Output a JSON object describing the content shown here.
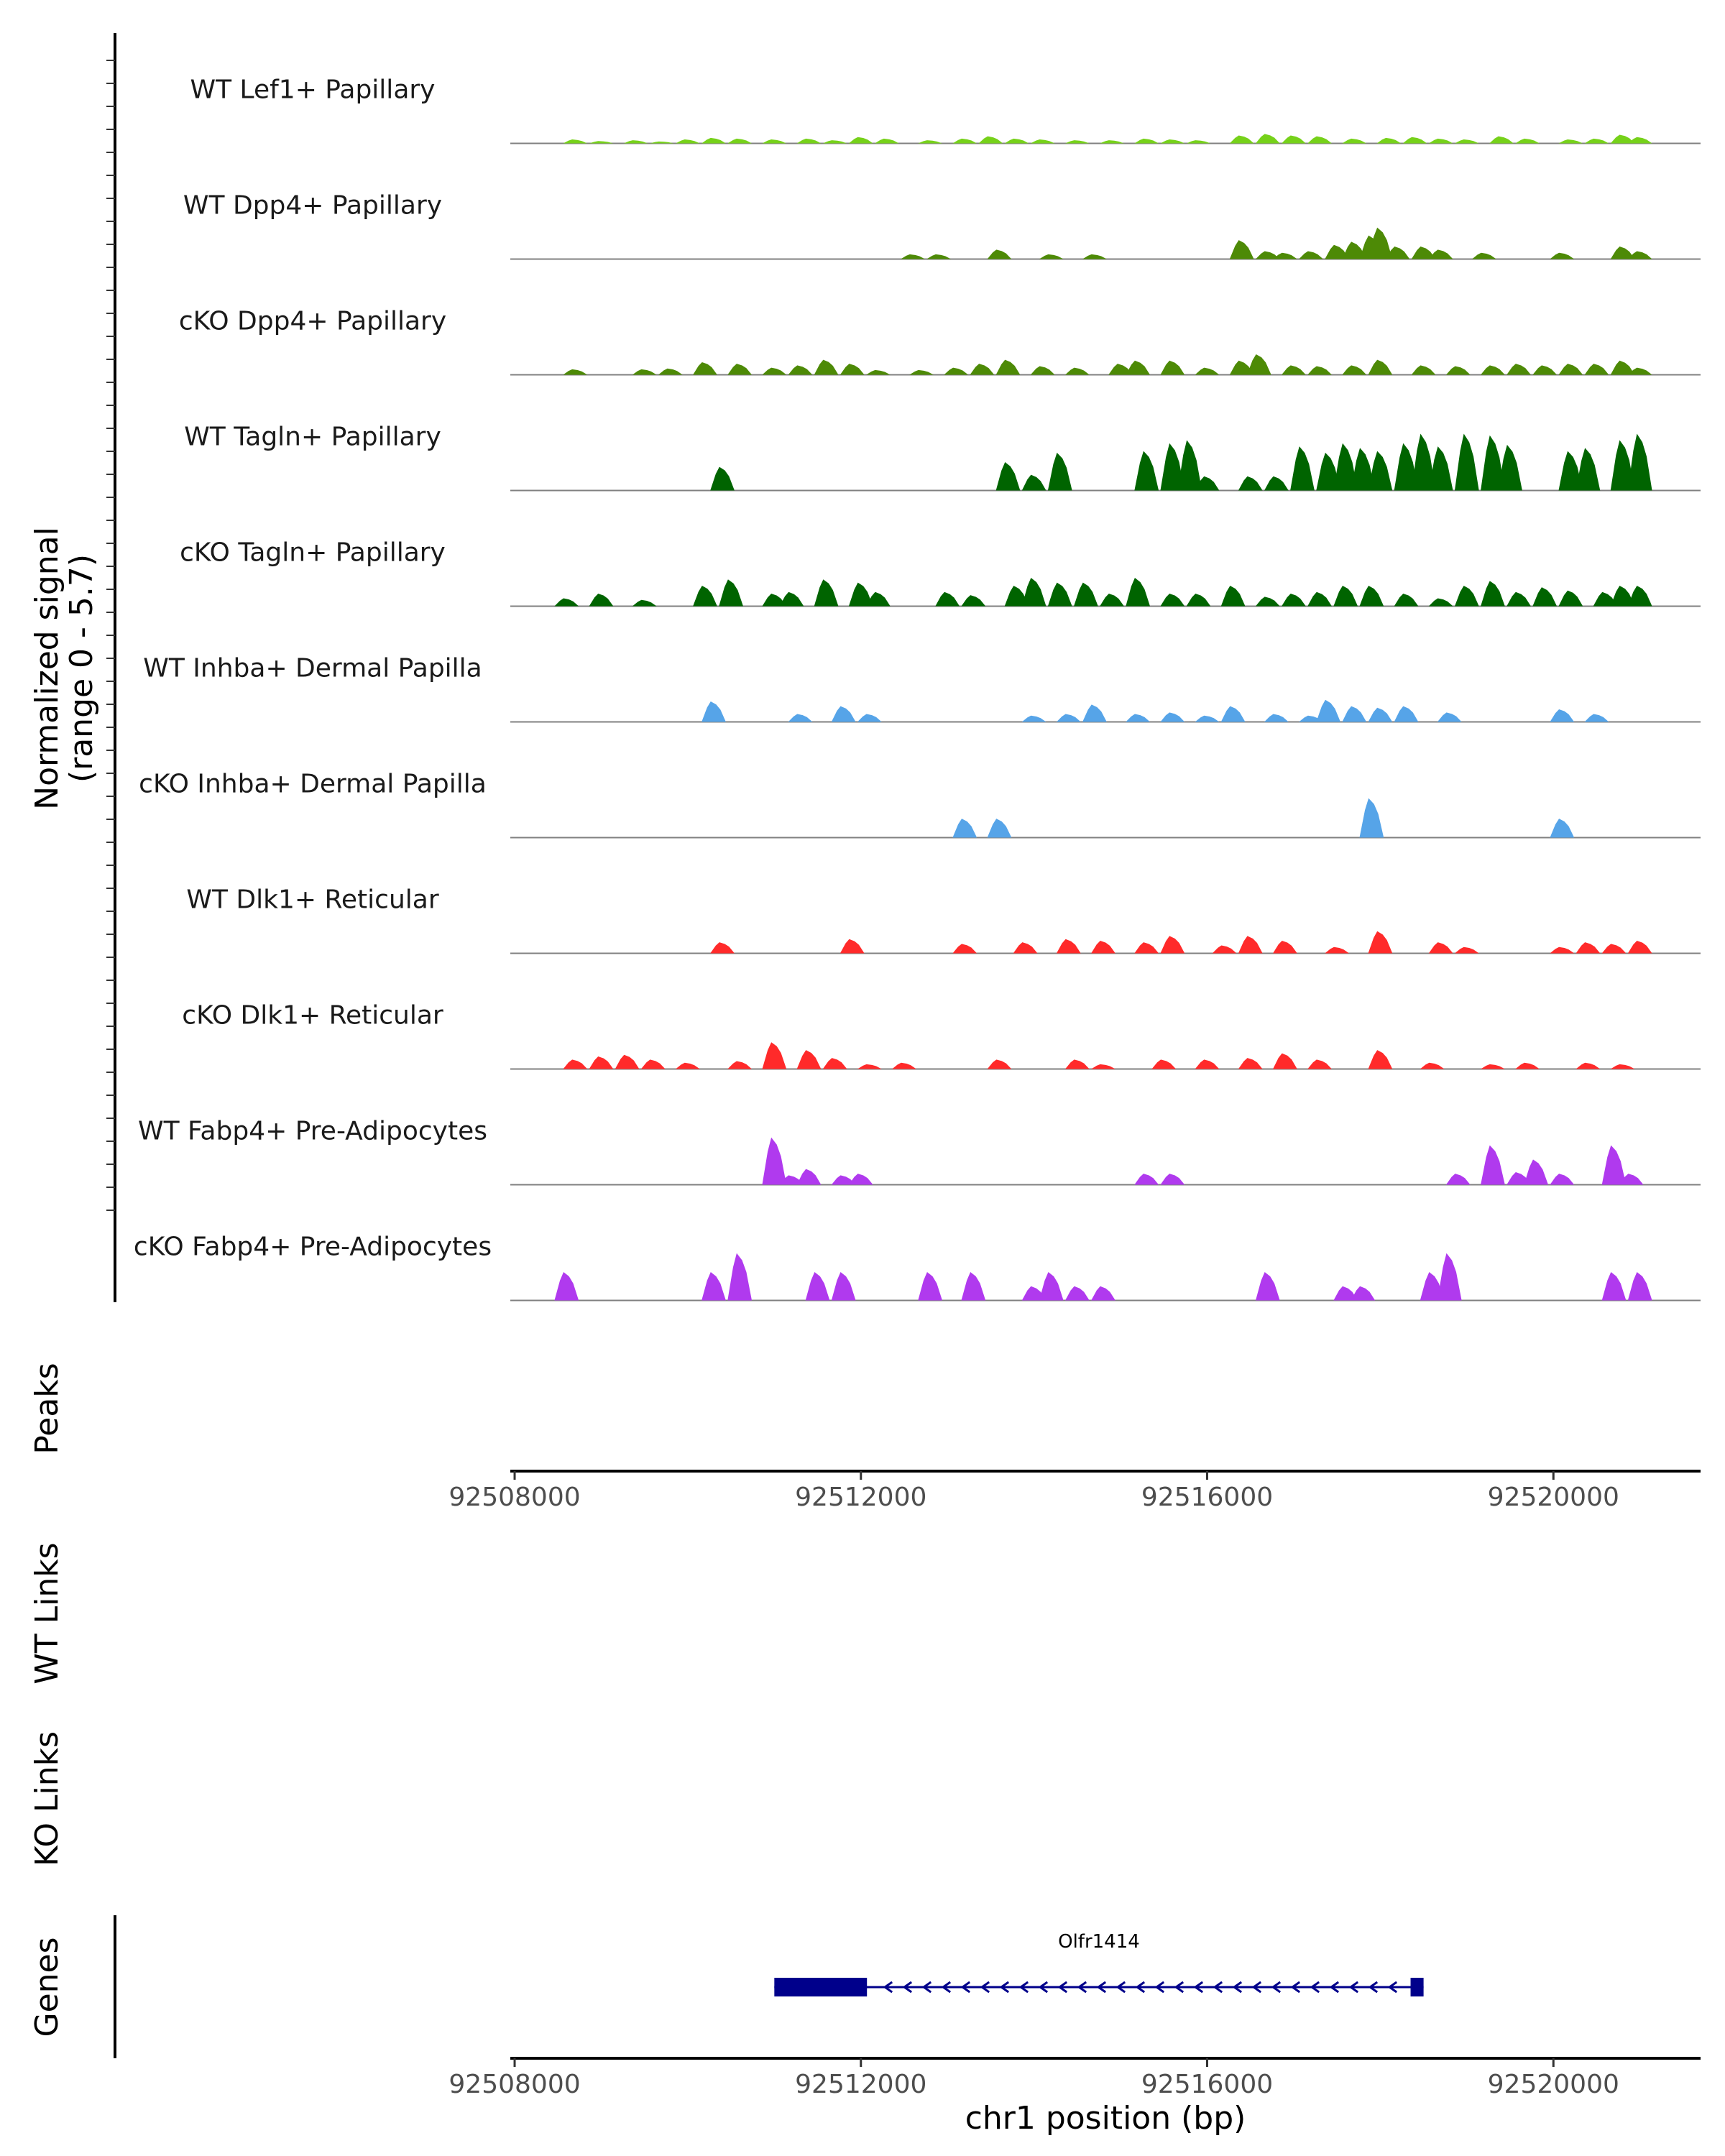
{
  "chart_data": {
    "type": "area",
    "title": "",
    "region": {
      "chrom": "chr1",
      "start": 92507950,
      "end": 92521700
    },
    "coverage_ylabel": "Normalized signal",
    "coverage_ylabel_range": "(range 0 - 5.7)",
    "ylim": [
      0,
      5.7
    ],
    "bin_bp": 100,
    "tracks": [
      {
        "name": "WT Lef1+ Papillary",
        "color": "#76D11A",
        "peaks": [
          [
            92508700,
            0.25
          ],
          [
            92509000,
            0.15
          ],
          [
            92509400,
            0.2
          ],
          [
            92509700,
            0.12
          ],
          [
            92510000,
            0.25
          ],
          [
            92510300,
            0.35
          ],
          [
            92510600,
            0.3
          ],
          [
            92511000,
            0.25
          ],
          [
            92511400,
            0.3
          ],
          [
            92511700,
            0.2
          ],
          [
            92512000,
            0.4
          ],
          [
            92512300,
            0.3
          ],
          [
            92512800,
            0.2
          ],
          [
            92513200,
            0.3
          ],
          [
            92513500,
            0.45
          ],
          [
            92513800,
            0.3
          ],
          [
            92514100,
            0.25
          ],
          [
            92514500,
            0.2
          ],
          [
            92514900,
            0.2
          ],
          [
            92515300,
            0.3
          ],
          [
            92515600,
            0.25
          ],
          [
            92515900,
            0.2
          ],
          [
            92516400,
            0.5
          ],
          [
            92516700,
            0.6
          ],
          [
            92517000,
            0.5
          ],
          [
            92517300,
            0.45
          ],
          [
            92517700,
            0.3
          ],
          [
            92518100,
            0.35
          ],
          [
            92518400,
            0.4
          ],
          [
            92518700,
            0.3
          ],
          [
            92519000,
            0.25
          ],
          [
            92519400,
            0.45
          ],
          [
            92519700,
            0.3
          ],
          [
            92520200,
            0.25
          ],
          [
            92520500,
            0.3
          ],
          [
            92520800,
            0.55
          ],
          [
            92521000,
            0.4
          ]
        ]
      },
      {
        "name": "WT Dpp4+ Papillary",
        "color": "#4D8A06",
        "peaks": [
          [
            92512600,
            0.3
          ],
          [
            92512900,
            0.3
          ],
          [
            92513600,
            0.6
          ],
          [
            92514200,
            0.3
          ],
          [
            92514700,
            0.3
          ],
          [
            92516400,
            1.2
          ],
          [
            92516700,
            0.5
          ],
          [
            92516900,
            0.4
          ],
          [
            92517200,
            0.5
          ],
          [
            92517500,
            0.9
          ],
          [
            92517700,
            1.1
          ],
          [
            92517900,
            1.5
          ],
          [
            92518000,
            2.0
          ],
          [
            92518200,
            0.8
          ],
          [
            92518500,
            0.8
          ],
          [
            92518700,
            0.6
          ],
          [
            92519200,
            0.4
          ],
          [
            92520100,
            0.4
          ],
          [
            92520800,
            0.8
          ],
          [
            92521000,
            0.5
          ]
        ]
      },
      {
        "name": "cKO Dpp4+ Papillary",
        "color": "#4D8A06",
        "peaks": [
          [
            92508700,
            0.35
          ],
          [
            92509500,
            0.35
          ],
          [
            92509800,
            0.4
          ],
          [
            92510200,
            0.8
          ],
          [
            92510600,
            0.7
          ],
          [
            92511000,
            0.45
          ],
          [
            92511300,
            0.6
          ],
          [
            92511600,
            0.95
          ],
          [
            92511900,
            0.7
          ],
          [
            92512200,
            0.3
          ],
          [
            92512700,
            0.3
          ],
          [
            92513100,
            0.45
          ],
          [
            92513400,
            0.7
          ],
          [
            92513700,
            0.95
          ],
          [
            92514100,
            0.55
          ],
          [
            92514500,
            0.45
          ],
          [
            92515000,
            0.7
          ],
          [
            92515200,
            0.9
          ],
          [
            92515600,
            0.9
          ],
          [
            92516000,
            0.45
          ],
          [
            92516400,
            0.9
          ],
          [
            92516600,
            1.3
          ],
          [
            92517000,
            0.6
          ],
          [
            92517300,
            0.55
          ],
          [
            92517700,
            0.6
          ],
          [
            92518000,
            0.95
          ],
          [
            92518500,
            0.6
          ],
          [
            92518900,
            0.55
          ],
          [
            92519300,
            0.6
          ],
          [
            92519600,
            0.7
          ],
          [
            92519900,
            0.6
          ],
          [
            92520200,
            0.7
          ],
          [
            92520500,
            0.7
          ],
          [
            92520800,
            0.9
          ],
          [
            92521000,
            0.45
          ]
        ]
      },
      {
        "name": "WT Tagln+ Papillary",
        "color": "#006400",
        "peaks": [
          [
            92510400,
            1.5
          ],
          [
            92513700,
            1.8
          ],
          [
            92514000,
            1.0
          ],
          [
            92514300,
            2.4
          ],
          [
            92515300,
            2.5
          ],
          [
            92515600,
            3.0
          ],
          [
            92515800,
            3.2
          ],
          [
            92516000,
            0.9
          ],
          [
            92516500,
            0.9
          ],
          [
            92516800,
            0.9
          ],
          [
            92517100,
            2.8
          ],
          [
            92517400,
            2.4
          ],
          [
            92517600,
            3.0
          ],
          [
            92517800,
            2.7
          ],
          [
            92518000,
            2.5
          ],
          [
            92518300,
            3.0
          ],
          [
            92518500,
            3.6
          ],
          [
            92518700,
            2.8
          ],
          [
            92519000,
            3.6
          ],
          [
            92519300,
            3.5
          ],
          [
            92519500,
            2.9
          ],
          [
            92520200,
            2.5
          ],
          [
            92520400,
            2.7
          ],
          [
            92520800,
            3.2
          ],
          [
            92521000,
            3.6
          ]
        ]
      },
      {
        "name": "cKO Tagln+ Papillary",
        "color": "#006400",
        "peaks": [
          [
            92508600,
            0.5
          ],
          [
            92509000,
            0.8
          ],
          [
            92509500,
            0.4
          ],
          [
            92510200,
            1.3
          ],
          [
            92510500,
            1.7
          ],
          [
            92511000,
            0.8
          ],
          [
            92511200,
            0.9
          ],
          [
            92511600,
            1.7
          ],
          [
            92512000,
            1.5
          ],
          [
            92512200,
            0.9
          ],
          [
            92513000,
            0.9
          ],
          [
            92513300,
            0.7
          ],
          [
            92513800,
            1.3
          ],
          [
            92514000,
            1.8
          ],
          [
            92514300,
            1.5
          ],
          [
            92514600,
            1.5
          ],
          [
            92514900,
            0.8
          ],
          [
            92515200,
            1.8
          ],
          [
            92515600,
            0.8
          ],
          [
            92515900,
            0.8
          ],
          [
            92516300,
            1.3
          ],
          [
            92516700,
            0.6
          ],
          [
            92517000,
            0.8
          ],
          [
            92517300,
            0.9
          ],
          [
            92517600,
            1.3
          ],
          [
            92517900,
            1.3
          ],
          [
            92518300,
            0.8
          ],
          [
            92518700,
            0.5
          ],
          [
            92519000,
            1.3
          ],
          [
            92519300,
            1.6
          ],
          [
            92519600,
            0.9
          ],
          [
            92519900,
            1.2
          ],
          [
            92520200,
            1.0
          ],
          [
            92520600,
            0.9
          ],
          [
            92520800,
            1.3
          ],
          [
            92521000,
            1.3
          ]
        ]
      },
      {
        "name": "WT Inhba+ Dermal Papilla",
        "color": "#56A4E8",
        "peaks": [
          [
            92510300,
            1.3
          ],
          [
            92511300,
            0.5
          ],
          [
            92511800,
            1.0
          ],
          [
            92512100,
            0.5
          ],
          [
            92514000,
            0.4
          ],
          [
            92514400,
            0.5
          ],
          [
            92514700,
            1.1
          ],
          [
            92515200,
            0.5
          ],
          [
            92515600,
            0.6
          ],
          [
            92516000,
            0.4
          ],
          [
            92516300,
            1.0
          ],
          [
            92516800,
            0.5
          ],
          [
            92517200,
            0.4
          ],
          [
            92517400,
            1.4
          ],
          [
            92517700,
            1.0
          ],
          [
            92518000,
            0.9
          ],
          [
            92518300,
            1.0
          ],
          [
            92518800,
            0.6
          ],
          [
            92520100,
            0.8
          ],
          [
            92520500,
            0.5
          ]
        ]
      },
      {
        "name": "cKO Inhba+ Dermal Papilla",
        "color": "#56A4E8",
        "peaks": [
          [
            92513200,
            1.2
          ],
          [
            92513600,
            1.2
          ],
          [
            92517900,
            2.5
          ],
          [
            92520100,
            1.2
          ]
        ]
      },
      {
        "name": "WT Dlk1+ Reticular",
        "color": "#FF2A2A",
        "peaks": [
          [
            92510400,
            0.7
          ],
          [
            92511900,
            0.9
          ],
          [
            92513200,
            0.6
          ],
          [
            92513900,
            0.7
          ],
          [
            92514400,
            0.9
          ],
          [
            92514800,
            0.8
          ],
          [
            92515300,
            0.7
          ],
          [
            92515600,
            1.1
          ],
          [
            92516200,
            0.5
          ],
          [
            92516500,
            1.1
          ],
          [
            92516900,
            0.8
          ],
          [
            92517500,
            0.4
          ],
          [
            92518000,
            1.4
          ],
          [
            92518700,
            0.7
          ],
          [
            92519000,
            0.4
          ],
          [
            92520100,
            0.4
          ],
          [
            92520400,
            0.7
          ],
          [
            92520700,
            0.6
          ],
          [
            92521000,
            0.8
          ]
        ]
      },
      {
        "name": "cKO Dlk1+ Reticular",
        "color": "#FF2A2A",
        "peaks": [
          [
            92508700,
            0.6
          ],
          [
            92509000,
            0.8
          ],
          [
            92509300,
            0.9
          ],
          [
            92509600,
            0.6
          ],
          [
            92510000,
            0.4
          ],
          [
            92510600,
            0.5
          ],
          [
            92511000,
            1.7
          ],
          [
            92511400,
            1.2
          ],
          [
            92511700,
            0.7
          ],
          [
            92512100,
            0.3
          ],
          [
            92512500,
            0.4
          ],
          [
            92513600,
            0.6
          ],
          [
            92514500,
            0.6
          ],
          [
            92514800,
            0.3
          ],
          [
            92515500,
            0.6
          ],
          [
            92516000,
            0.6
          ],
          [
            92516500,
            0.7
          ],
          [
            92516900,
            1.0
          ],
          [
            92517300,
            0.6
          ],
          [
            92518000,
            1.2
          ],
          [
            92518600,
            0.4
          ],
          [
            92519300,
            0.3
          ],
          [
            92519700,
            0.4
          ],
          [
            92520400,
            0.4
          ],
          [
            92520800,
            0.3
          ]
        ]
      },
      {
        "name": "WT Fabp4+ Pre-Adipocytes",
        "color": "#B03AEE",
        "peaks": [
          [
            92511000,
            3.0
          ],
          [
            92511200,
            0.6
          ],
          [
            92511400,
            1.0
          ],
          [
            92511800,
            0.6
          ],
          [
            92512000,
            0.7
          ],
          [
            92515300,
            0.7
          ],
          [
            92515600,
            0.7
          ],
          [
            92518900,
            0.7
          ],
          [
            92519300,
            2.5
          ],
          [
            92519600,
            0.8
          ],
          [
            92519800,
            1.6
          ],
          [
            92520100,
            0.7
          ],
          [
            92520700,
            2.5
          ],
          [
            92520900,
            0.7
          ]
        ]
      },
      {
        "name": "cKO Fabp4+ Pre-Adipocytes",
        "color": "#B03AEE",
        "peaks": [
          [
            92508600,
            1.8
          ],
          [
            92510300,
            1.8
          ],
          [
            92510600,
            3.0
          ],
          [
            92511500,
            1.8
          ],
          [
            92511800,
            1.8
          ],
          [
            92512800,
            1.8
          ],
          [
            92513300,
            1.8
          ],
          [
            92514000,
            0.9
          ],
          [
            92514200,
            1.8
          ],
          [
            92514500,
            0.9
          ],
          [
            92514800,
            0.9
          ],
          [
            92516700,
            1.8
          ],
          [
            92517600,
            0.9
          ],
          [
            92517800,
            0.9
          ],
          [
            92518600,
            1.8
          ],
          [
            92518800,
            3.0
          ],
          [
            92520700,
            1.8
          ],
          [
            92521000,
            1.8
          ]
        ]
      }
    ],
    "xaxis_ticks": [
      92508000,
      92512000,
      92516000,
      92520000
    ],
    "xlabel": "chr1 position (bp)",
    "panels": [
      "Peaks",
      "WT Links",
      "KO Links",
      "Genes"
    ],
    "gene": {
      "name": "Olfr1414",
      "strand": "-",
      "tx_start": 92511000,
      "tx_end": 92518500,
      "cds_start": 92511000,
      "cds_end": 92512070,
      "utr5_start": 92518350,
      "utr5_end": 92518500,
      "color": "#00008B"
    }
  }
}
